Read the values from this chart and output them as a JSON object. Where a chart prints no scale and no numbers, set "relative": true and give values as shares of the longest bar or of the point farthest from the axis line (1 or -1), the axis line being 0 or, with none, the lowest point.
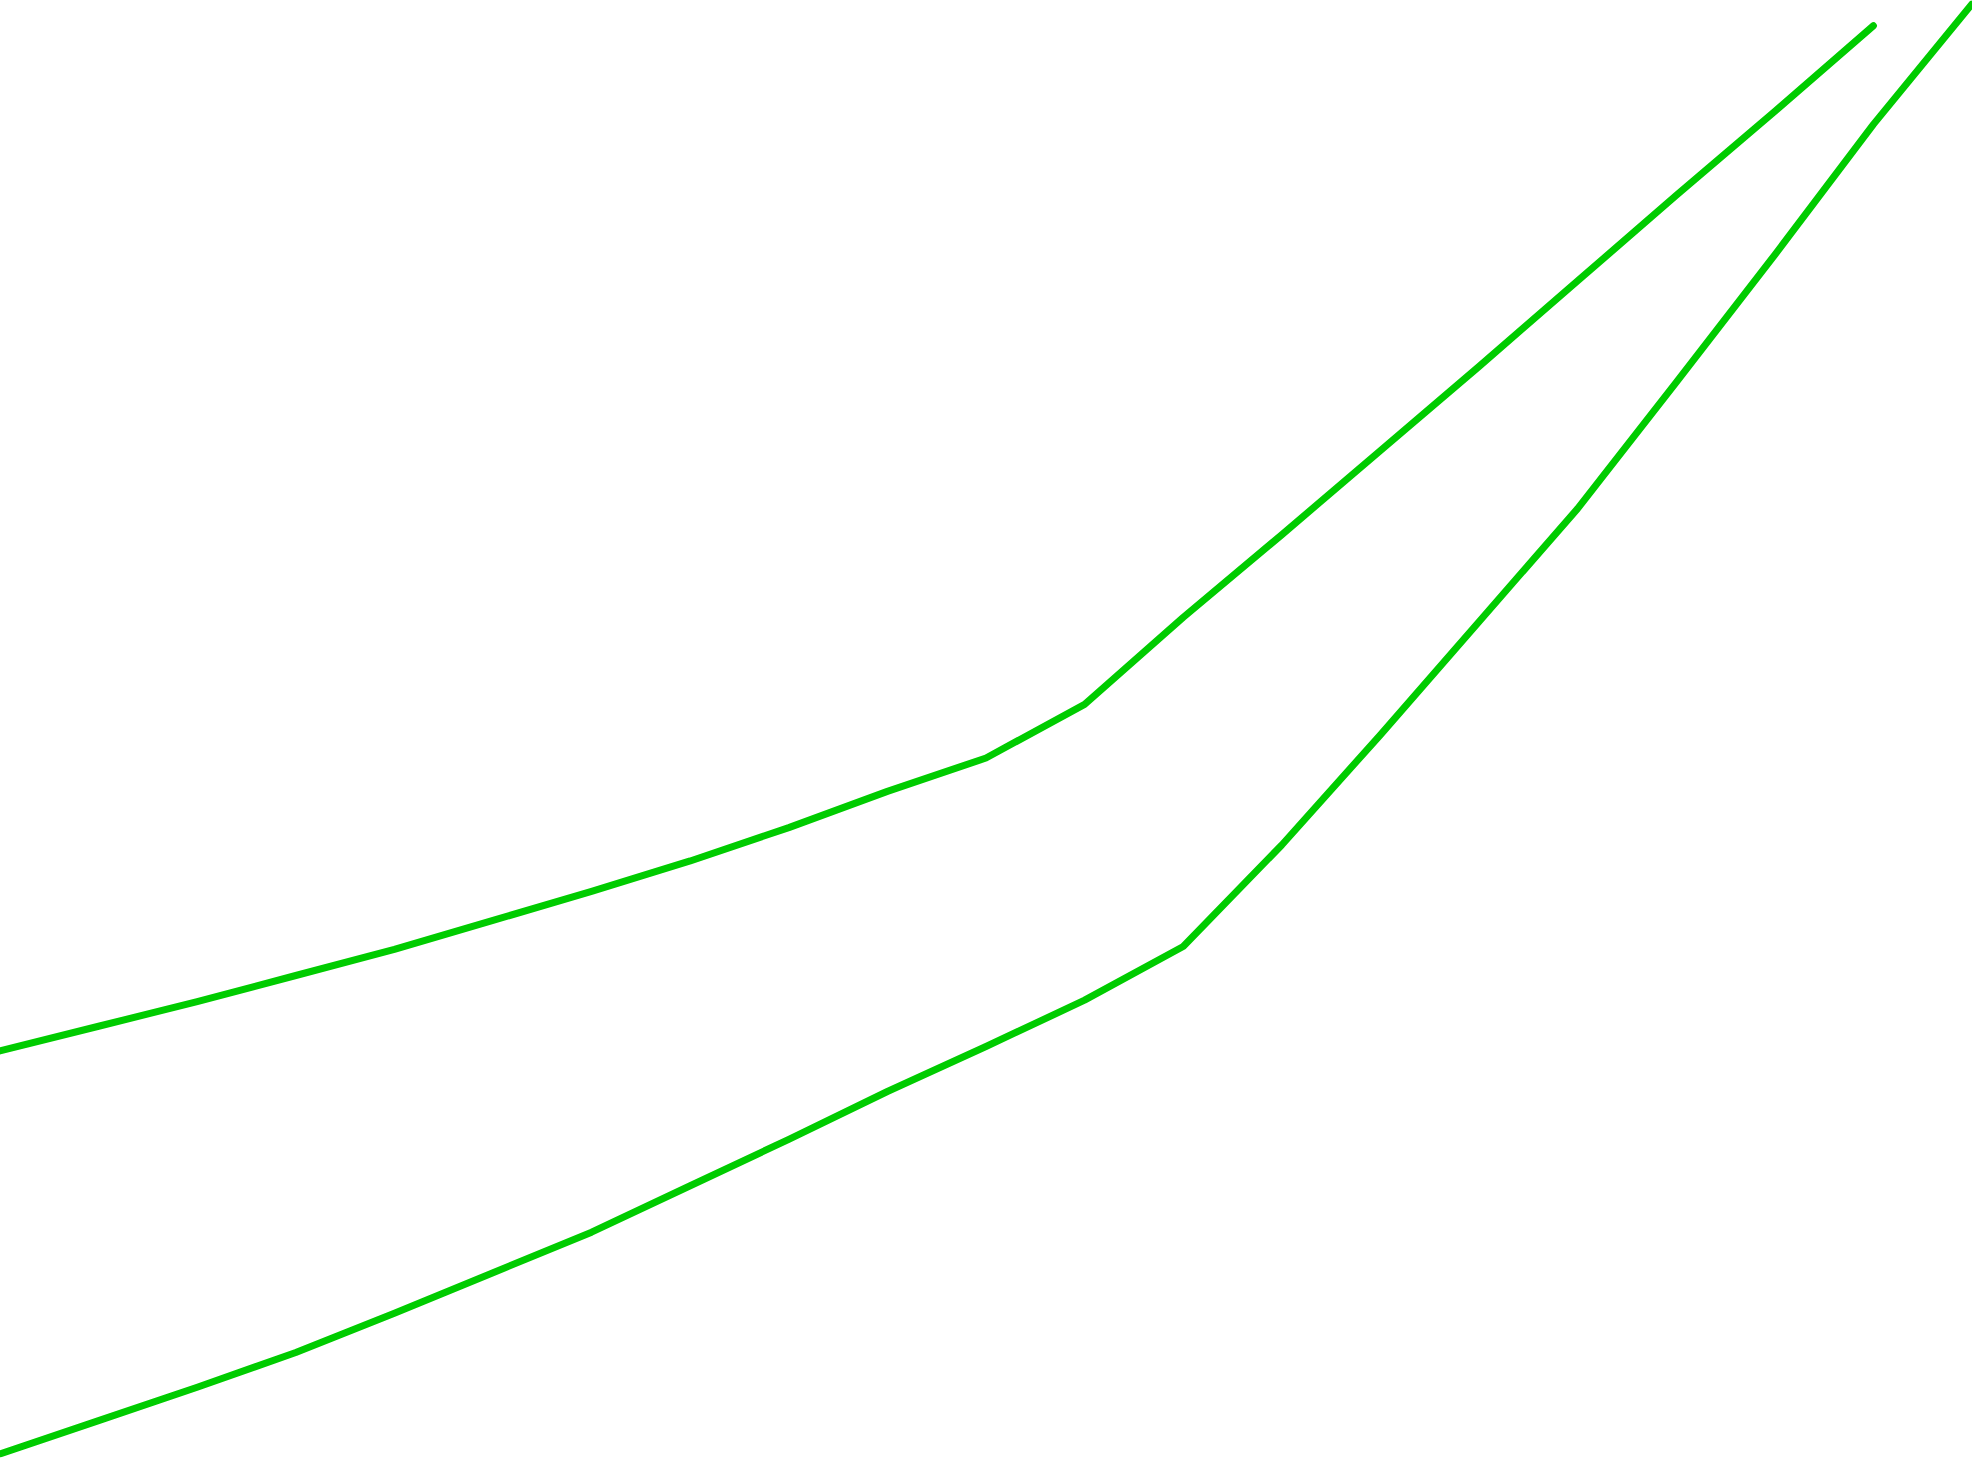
{
  "chart_data": {
    "type": "line",
    "relative": true,
    "marker": "none",
    "line_style": "solid",
    "categories": [
      null,
      null,
      null,
      null,
      null,
      null,
      null,
      null,
      null,
      null,
      null,
      null,
      null,
      null,
      null,
      null,
      null,
      null,
      null,
      null,
      null
    ],
    "series": [
      {
        "color": "#00cc00",
        "values": [
          0.278,
          0.295,
          0.312,
          0.33,
          0.348,
          0.368,
          0.388,
          0.409,
          0.432,
          0.457,
          0.48,
          0.517,
          0.577,
          0.634,
          0.692,
          0.75,
          0.809,
          0.868,
          0.926,
          0.985,
          null
        ]
      },
      {
        "color": "#00cc00",
        "values": [
          0,
          0.023,
          0.046,
          0.07,
          0.097,
          0.125,
          0.153,
          0.185,
          0.217,
          0.25,
          0.281,
          0.313,
          0.35,
          0.42,
          0.496,
          0.574,
          0.652,
          0.739,
          0.827,
          0.917,
          1
        ]
      }
    ]
  }
}
